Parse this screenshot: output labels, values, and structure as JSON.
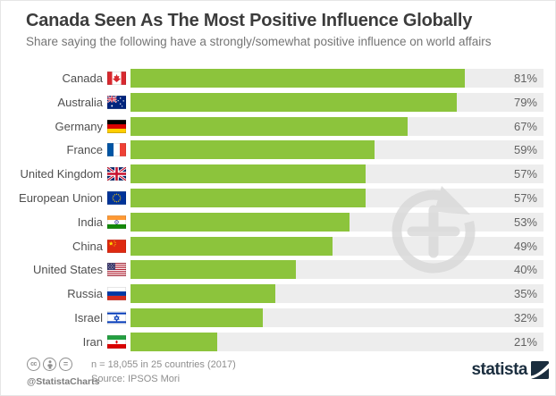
{
  "header": {
    "title": "Canada Seen As The Most Positive Influence Globally",
    "subtitle": "Share saying the following have a strongly/somewhat positive influence on world affairs"
  },
  "chart_data": {
    "type": "bar",
    "orientation": "horizontal",
    "unit": "%",
    "xlim": [
      0,
      100
    ],
    "categories": [
      "Canada",
      "Australia",
      "Germany",
      "France",
      "United Kingdom",
      "European Union",
      "India",
      "China",
      "United States",
      "Russia",
      "Israel",
      "Iran"
    ],
    "values": [
      81,
      79,
      67,
      59,
      57,
      57,
      53,
      49,
      40,
      35,
      32,
      21
    ],
    "value_labels": [
      "81%",
      "79%",
      "67%",
      "59%",
      "57%",
      "57%",
      "53%",
      "49%",
      "40%",
      "35%",
      "32%",
      "21%"
    ],
    "flags": [
      "canada",
      "australia",
      "germany",
      "france",
      "uk",
      "eu",
      "india",
      "china",
      "usa",
      "russia",
      "israel",
      "iran"
    ],
    "bar_color": "#8CC43C",
    "track_color": "#ededed",
    "grid": false,
    "legend": false
  },
  "watermark_icon": "refresh-plus-watermark-icon",
  "footer": {
    "license_icons": [
      "cc-icon",
      "attribution-icon",
      "no-derivatives-icon"
    ],
    "handle": "@StatistaCharts",
    "note": "n = 18,055 in 25 countries (2017)",
    "source": "Source: IPSOS Mori",
    "brand": "statista",
    "brand_color": "#1b2e3f"
  }
}
